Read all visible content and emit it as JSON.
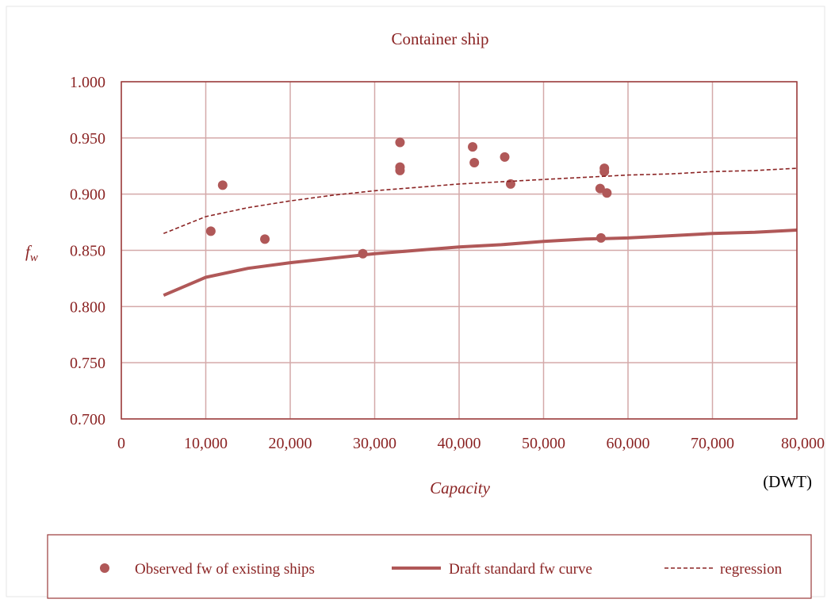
{
  "chart_data": {
    "type": "scatter",
    "title": "Container ship",
    "xlabel": "Capacity",
    "x_unit": "(DWT)",
    "ylabel": "fw",
    "xlim": [
      0,
      80000
    ],
    "ylim": [
      0.7,
      1.0
    ],
    "x_ticks": [
      0,
      10000,
      20000,
      30000,
      40000,
      50000,
      60000,
      70000,
      80000
    ],
    "x_tick_labels": [
      "0",
      "10,000",
      "20,000",
      "30,000",
      "40,000",
      "50,000",
      "60,000",
      "70,000",
      "80,000"
    ],
    "y_ticks": [
      0.7,
      0.75,
      0.8,
      0.85,
      0.9,
      0.95,
      1.0
    ],
    "y_tick_labels": [
      "0.700",
      "0.750",
      "0.800",
      "0.850",
      "0.900",
      "0.950",
      "1.000"
    ],
    "grid": true,
    "legend_position": "bottom",
    "series": [
      {
        "name": "Observed fw of existing ships",
        "kind": "scatter",
        "color": "#b05858",
        "points": [
          [
            10600,
            0.867
          ],
          [
            12000,
            0.908
          ],
          [
            17000,
            0.86
          ],
          [
            28600,
            0.847
          ],
          [
            33000,
            0.946
          ],
          [
            33000,
            0.924
          ],
          [
            33000,
            0.921
          ],
          [
            41600,
            0.942
          ],
          [
            41800,
            0.928
          ],
          [
            45400,
            0.933
          ],
          [
            46100,
            0.909
          ],
          [
            56700,
            0.905
          ],
          [
            56800,
            0.861
          ],
          [
            57200,
            0.923
          ],
          [
            57200,
            0.92
          ],
          [
            57500,
            0.901
          ]
        ]
      },
      {
        "name": "Draft standard fw curve",
        "kind": "line",
        "color": "#b05858",
        "points": [
          [
            5000,
            0.81
          ],
          [
            10000,
            0.826
          ],
          [
            15000,
            0.834
          ],
          [
            20000,
            0.839
          ],
          [
            25000,
            0.843
          ],
          [
            30000,
            0.847
          ],
          [
            35000,
            0.85
          ],
          [
            40000,
            0.853
          ],
          [
            45000,
            0.855
          ],
          [
            50000,
            0.858
          ],
          [
            55000,
            0.86
          ],
          [
            60000,
            0.861
          ],
          [
            65000,
            0.863
          ],
          [
            70000,
            0.865
          ],
          [
            75000,
            0.866
          ],
          [
            80000,
            0.868
          ]
        ]
      },
      {
        "name": "regression",
        "kind": "dashed-line",
        "color": "#8b2424",
        "points": [
          [
            5000,
            0.865
          ],
          [
            10000,
            0.88
          ],
          [
            15000,
            0.888
          ],
          [
            20000,
            0.894
          ],
          [
            25000,
            0.899
          ],
          [
            30000,
            0.903
          ],
          [
            35000,
            0.906
          ],
          [
            40000,
            0.909
          ],
          [
            45000,
            0.911
          ],
          [
            50000,
            0.913
          ],
          [
            55000,
            0.915
          ],
          [
            60000,
            0.917
          ],
          [
            65000,
            0.918
          ],
          [
            70000,
            0.92
          ],
          [
            75000,
            0.921
          ],
          [
            80000,
            0.923
          ]
        ]
      }
    ]
  }
}
